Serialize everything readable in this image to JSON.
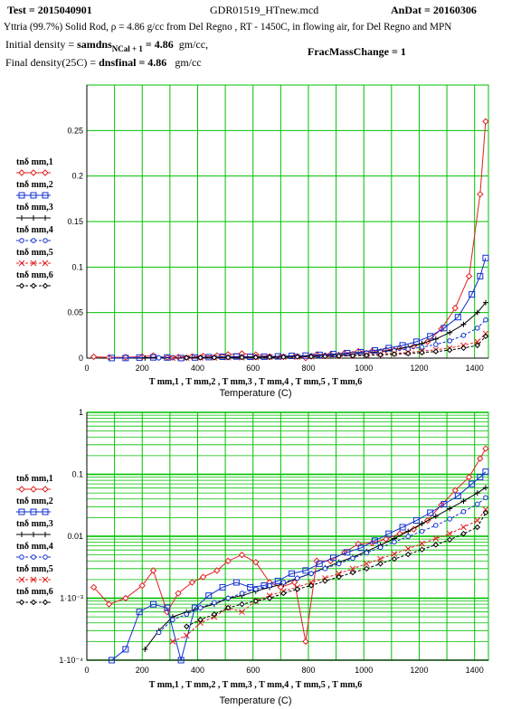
{
  "header": {
    "test_label": "Test  = 2015040901",
    "file_name": "GDR01519_HTnew.mcd",
    "andat_label": "AnDat = 20160306",
    "description": "Yttria (99.7%) Solid Rod,  ρ = 4.86 g/cc from Del Regno , RT - 1450C, in flowing air, for Del Regno and MPN",
    "initial_density_prefix": "Initial density = ",
    "initial_density_var": "samdns",
    "initial_density_sub": "NCal + 1",
    "initial_density_value": " = 4.86",
    "initial_density_unit": "gm/cc,",
    "final_density_prefix": "Final density(25C) =  ",
    "final_density_var": "dnsfinal = 4.86",
    "final_density_unit": "gm/cc",
    "frac_mass_change": "FracMassChange = 1"
  },
  "colors": {
    "grid": "#00c000",
    "axis": "#000000",
    "series": [
      "#e02020",
      "#1030d0",
      "#000000",
      "#1030d0",
      "#e02020",
      "#000000"
    ]
  },
  "chart_data": [
    {
      "type": "line",
      "scale": "linear",
      "xlabel": "Temperature (C)",
      "xlim": [
        0,
        1450
      ],
      "ylim": [
        0,
        0.3
      ],
      "xticks": [
        "0",
        "200",
        "400",
        "600",
        "800",
        "1000",
        "1200",
        "1400"
      ],
      "yticks": [
        "0",
        "0.05",
        "0.1",
        "0.15",
        "0.2",
        "0.25"
      ],
      "grid": true,
      "legend_position": "left",
      "legend_labels": [
        "tnδ mm,1",
        "tnδ mm,2",
        "tnδ mm,3",
        "tnδ mm,4",
        "tnδ mm,5",
        "tnδ mm,6"
      ],
      "sublabel": "T mm,1 , T mm,2 , T mm,3 , T mm,4 , T mm,5 , T mm,6"
    },
    {
      "type": "line",
      "scale": "log",
      "xlabel": "Temperature (C)",
      "xlim": [
        0,
        1450
      ],
      "ylim": [
        0.0001,
        1
      ],
      "xticks": [
        "0",
        "200",
        "400",
        "600",
        "800",
        "1000",
        "1200",
        "1400"
      ],
      "yticks": [
        "1·10⁻⁴",
        "1·10⁻³",
        "0.01",
        "0.1",
        "1"
      ],
      "grid": true,
      "legend_position": "left",
      "legend_labels": [
        "tnδ mm,1",
        "tnδ mm,2",
        "tnδ mm,3",
        "tnδ mm,4",
        "tnδ mm,5",
        "tnδ mm,6"
      ],
      "sublabel": "T mm,1 , T mm,2 , T mm,3 , T mm,4 , T mm,5 , T mm,6"
    }
  ],
  "series": [
    {
      "marker": "diamond",
      "dash": false,
      "points": [
        [
          25,
          0.0015
        ],
        [
          80,
          0.0008
        ],
        [
          140,
          0.001
        ],
        [
          200,
          0.0016
        ],
        [
          240,
          0.0028
        ],
        [
          290,
          0.0006
        ],
        [
          330,
          0.0012
        ],
        [
          380,
          0.0018
        ],
        [
          420,
          0.0022
        ],
        [
          470,
          0.0028
        ],
        [
          510,
          0.004
        ],
        [
          560,
          0.005
        ],
        [
          610,
          0.0038
        ],
        [
          660,
          0.0018
        ],
        [
          700,
          0.0015
        ],
        [
          750,
          0.0018
        ],
        [
          790,
          0.0002
        ],
        [
          830,
          0.004
        ],
        [
          880,
          0.004
        ],
        [
          930,
          0.0055
        ],
        [
          980,
          0.0075
        ],
        [
          1030,
          0.0078
        ],
        [
          1080,
          0.009
        ],
        [
          1130,
          0.011
        ],
        [
          1180,
          0.013
        ],
        [
          1230,
          0.018
        ],
        [
          1280,
          0.032
        ],
        [
          1330,
          0.055
        ],
        [
          1380,
          0.09
        ],
        [
          1420,
          0.18
        ],
        [
          1440,
          0.26
        ]
      ]
    },
    {
      "marker": "square",
      "dash": false,
      "points": [
        [
          90,
          0.0001
        ],
        [
          140,
          0.00015
        ],
        [
          190,
          0.0006
        ],
        [
          240,
          0.0008
        ],
        [
          290,
          0.0007
        ],
        [
          340,
          0.0001
        ],
        [
          390,
          0.0007
        ],
        [
          440,
          0.0011
        ],
        [
          490,
          0.0015
        ],
        [
          540,
          0.0018
        ],
        [
          590,
          0.0015
        ],
        [
          640,
          0.0016
        ],
        [
          690,
          0.0019
        ],
        [
          740,
          0.0025
        ],
        [
          790,
          0.0028
        ],
        [
          840,
          0.0036
        ],
        [
          890,
          0.0045
        ],
        [
          940,
          0.0055
        ],
        [
          990,
          0.0065
        ],
        [
          1040,
          0.0085
        ],
        [
          1090,
          0.011
        ],
        [
          1140,
          0.014
        ],
        [
          1190,
          0.018
        ],
        [
          1240,
          0.024
        ],
        [
          1290,
          0.033
        ],
        [
          1340,
          0.045
        ],
        [
          1390,
          0.07
        ],
        [
          1420,
          0.09
        ],
        [
          1440,
          0.11
        ]
      ]
    },
    {
      "marker": "plus",
      "dash": false,
      "points": [
        [
          210,
          0.00015
        ],
        [
          260,
          0.0003
        ],
        [
          310,
          0.0005
        ],
        [
          360,
          0.0006
        ],
        [
          410,
          0.0007
        ],
        [
          460,
          0.0008
        ],
        [
          510,
          0.001
        ],
        [
          560,
          0.0011
        ],
        [
          610,
          0.0013
        ],
        [
          660,
          0.0015
        ],
        [
          710,
          0.0017
        ],
        [
          760,
          0.0021
        ],
        [
          810,
          0.0025
        ],
        [
          860,
          0.0031
        ],
        [
          910,
          0.0038
        ],
        [
          960,
          0.0046
        ],
        [
          1010,
          0.0057
        ],
        [
          1060,
          0.0072
        ],
        [
          1110,
          0.0092
        ],
        [
          1160,
          0.012
        ],
        [
          1210,
          0.016
        ],
        [
          1260,
          0.021
        ],
        [
          1310,
          0.028
        ],
        [
          1360,
          0.037
        ],
        [
          1410,
          0.05
        ],
        [
          1440,
          0.061
        ]
      ]
    },
    {
      "marker": "circle",
      "dash": true,
      "points": [
        [
          260,
          0.00028
        ],
        [
          310,
          0.00045
        ],
        [
          360,
          0.00055
        ],
        [
          410,
          0.0007
        ],
        [
          460,
          0.00085
        ],
        [
          510,
          0.001
        ],
        [
          560,
          0.0012
        ],
        [
          610,
          0.0014
        ],
        [
          660,
          0.0016
        ],
        [
          710,
          0.0018
        ],
        [
          760,
          0.0021
        ],
        [
          810,
          0.0025
        ],
        [
          860,
          0.003
        ],
        [
          910,
          0.0036
        ],
        [
          960,
          0.0044
        ],
        [
          1010,
          0.0054
        ],
        [
          1060,
          0.0066
        ],
        [
          1110,
          0.0081
        ],
        [
          1160,
          0.0099
        ],
        [
          1210,
          0.012
        ],
        [
          1260,
          0.015
        ],
        [
          1310,
          0.019
        ],
        [
          1360,
          0.025
        ],
        [
          1410,
          0.033
        ],
        [
          1440,
          0.042
        ]
      ]
    },
    {
      "marker": "x",
      "dash": true,
      "points": [
        [
          310,
          0.0002
        ],
        [
          360,
          0.00025
        ],
        [
          410,
          0.0004
        ],
        [
          460,
          0.0005
        ],
        [
          510,
          0.0007
        ],
        [
          560,
          0.0006
        ],
        [
          610,
          0.0009
        ],
        [
          660,
          0.0011
        ],
        [
          710,
          0.0013
        ],
        [
          760,
          0.0015
        ],
        [
          810,
          0.0018
        ],
        [
          860,
          0.0021
        ],
        [
          910,
          0.0025
        ],
        [
          960,
          0.003
        ],
        [
          1010,
          0.0036
        ],
        [
          1060,
          0.0043
        ],
        [
          1110,
          0.0052
        ],
        [
          1160,
          0.0063
        ],
        [
          1210,
          0.0076
        ],
        [
          1260,
          0.0092
        ],
        [
          1310,
          0.011
        ],
        [
          1360,
          0.014
        ],
        [
          1410,
          0.018
        ],
        [
          1440,
          0.027
        ]
      ]
    },
    {
      "marker": "diamond-small",
      "dash": true,
      "points": [
        [
          360,
          0.00035
        ],
        [
          410,
          0.00045
        ],
        [
          460,
          0.00055
        ],
        [
          510,
          0.0007
        ],
        [
          560,
          0.0008
        ],
        [
          610,
          0.0009
        ],
        [
          660,
          0.001
        ],
        [
          710,
          0.0012
        ],
        [
          760,
          0.0014
        ],
        [
          810,
          0.0016
        ],
        [
          860,
          0.0019
        ],
        [
          910,
          0.0022
        ],
        [
          960,
          0.0026
        ],
        [
          1010,
          0.003
        ],
        [
          1060,
          0.0036
        ],
        [
          1110,
          0.0043
        ],
        [
          1160,
          0.0051
        ],
        [
          1210,
          0.0061
        ],
        [
          1260,
          0.0073
        ],
        [
          1310,
          0.0088
        ],
        [
          1360,
          0.011
        ],
        [
          1410,
          0.014
        ],
        [
          1440,
          0.024
        ]
      ]
    }
  ]
}
